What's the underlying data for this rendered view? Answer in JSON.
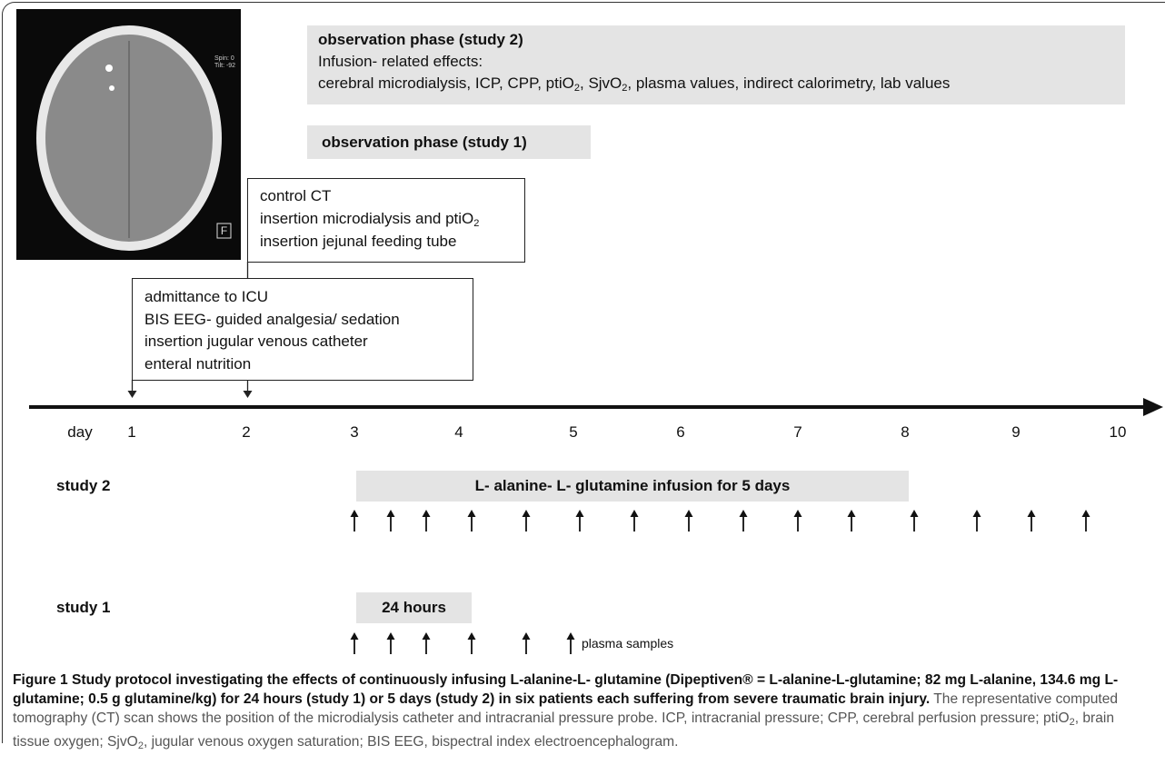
{
  "ct_scan": {
    "marker": "F",
    "overlay": [
      "Spin: 0",
      "Tilt: -92"
    ]
  },
  "observation_study2": {
    "title": "observation phase (study 2)",
    "subtitle": "Infusion- related effects:",
    "effects": [
      {
        "text": "cerebral microdialysis, ICP, CPP, ptiO",
        "sub": "2"
      },
      {
        "text": ", SjvO",
        "sub": "2"
      },
      {
        "text": ", plasma values, indirect calorimetry, lab values"
      }
    ]
  },
  "observation_study1": {
    "title": "observation phase (study 1)"
  },
  "day2_events": [
    {
      "text": "control CT"
    },
    {
      "text": "insertion microdialysis and ptiO",
      "sub": "2"
    },
    {
      "text": "insertion jejunal feeding tube"
    }
  ],
  "day1_events": [
    "admittance to ICU",
    "BIS EEG- guided analgesia/ sedation",
    "insertion jugular venous catheter",
    "enteral nutrition"
  ],
  "timeline": {
    "label": "day",
    "days": [
      1,
      2,
      3,
      4,
      5,
      6,
      7,
      8,
      9,
      10
    ]
  },
  "study2": {
    "label": "study 2",
    "infusion": "L- alanine- L- glutamine infusion for 5 days"
  },
  "study1": {
    "label": "study 1",
    "duration": "24 hours",
    "samples": "plasma samples"
  },
  "caption": {
    "title": "Figure 1 Study protocol investigating the effects of continuously infusing L-alanine-L- glutamine (Dipeptiven® = L-alanine-L-glutamine; 82 mg L-alanine, 134.6 mg L-glutamine; 0.5 g glutamine/kg) for 24 hours (study 1) or 5 days (study 2) in six patients each suffering from severe traumatic brain injury.",
    "text": [
      {
        "text": " The representative computed tomography (CT) scan shows the position of the microdialysis catheter and intracranial pressure probe. ICP, intracranial pressure; CPP, cerebral perfusion pressure; ptiO",
        "sub": "2"
      },
      {
        "text": ", brain tissue oxygen; SjvO",
        "sub": "2"
      },
      {
        "text": ", jugular venous oxygen saturation; BIS EEG, bispectral index electroencephalogram."
      }
    ]
  }
}
